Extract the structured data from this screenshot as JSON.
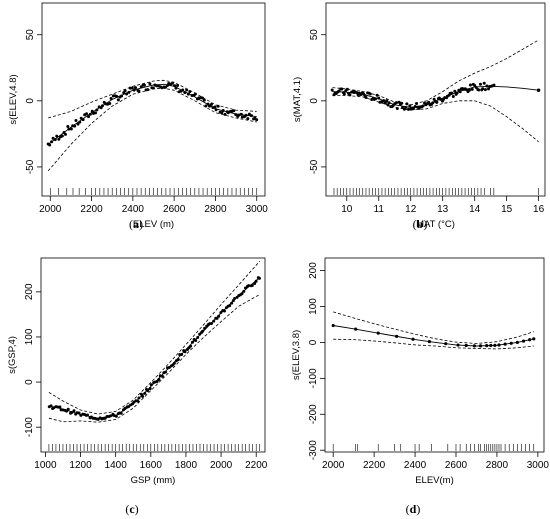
{
  "chart_data": [
    {
      "type": "line",
      "panel": "(a)",
      "xlabel": "ELEV (m)",
      "ylabel": "s(ELEV,4.8)",
      "xlim": [
        1960,
        3040
      ],
      "ylim": [
        -72,
        74
      ],
      "x_ticks": [
        2000,
        2200,
        2400,
        2600,
        2800,
        3000
      ],
      "y_ticks": [
        -50,
        0,
        50
      ],
      "x_tick_labels": [
        "2000",
        "2200",
        "2400",
        "2600",
        "2800",
        "3000"
      ],
      "y_tick_labels": [
        "-50",
        "0",
        "50"
      ],
      "fit": {
        "x": [
          1990,
          2100,
          2200,
          2300,
          2400,
          2500,
          2550,
          2600,
          2700,
          2800,
          2900,
          3000
        ],
        "y": [
          -33,
          -20,
          -9,
          1,
          8,
          12,
          12.5,
          11,
          3,
          -6,
          -10,
          -12
        ]
      },
      "upper": {
        "x": [
          1990,
          2100,
          2200,
          2300,
          2400,
          2500,
          2550,
          2600,
          2700,
          2800,
          2900,
          3000
        ],
        "y": [
          -13,
          -8,
          -1,
          5,
          11,
          15,
          15.5,
          14,
          6,
          -3,
          -7,
          -8
        ]
      },
      "lower": {
        "x": [
          1990,
          2100,
          2200,
          2300,
          2400,
          2500,
          2550,
          2600,
          2700,
          2800,
          2900,
          3000
        ],
        "y": [
          -53,
          -33,
          -17,
          -4,
          5,
          9,
          9.5,
          8,
          0,
          -9,
          -13,
          -16
        ]
      },
      "points_x_range": [
        1990,
        3000
      ],
      "point_spread": 2.5,
      "rug_x": [
        2000,
        2040,
        2080,
        2110,
        2140,
        2170,
        2200,
        2220,
        2240,
        2260,
        2280,
        2300,
        2320,
        2340,
        2360,
        2380,
        2400,
        2420,
        2440,
        2460,
        2480,
        2500,
        2520,
        2540,
        2560,
        2580,
        2600,
        2620,
        2640,
        2660,
        2680,
        2700,
        2720,
        2740,
        2760,
        2780,
        2800,
        2820,
        2840,
        2860,
        2880,
        2900,
        2920,
        2940,
        2960,
        2980,
        3000
      ]
    },
    {
      "type": "line",
      "panel": "(b)",
      "xlabel": "MAT (°C)",
      "ylabel": "s(MAT,4.1)",
      "xlim": [
        9.35,
        16.2
      ],
      "ylim": [
        -72,
        74
      ],
      "x_ticks": [
        10,
        11,
        12,
        13,
        14,
        15,
        16
      ],
      "y_ticks": [
        -50,
        0,
        50
      ],
      "x_tick_labels": [
        "10",
        "11",
        "12",
        "13",
        "14",
        "15",
        "16"
      ],
      "y_tick_labels": [
        "-50",
        "0",
        "50"
      ],
      "fit": {
        "x": [
          9.55,
          10,
          10.5,
          11,
          11.5,
          12,
          12.5,
          13,
          13.5,
          14,
          14.5,
          15,
          15.5,
          16
        ],
        "y": [
          7,
          6.5,
          5,
          1.5,
          -3,
          -5,
          -3,
          2,
          7,
          10.5,
          11,
          10.5,
          9.5,
          8
        ]
      },
      "upper": {
        "x": [
          9.55,
          10,
          10.5,
          11,
          11.5,
          12,
          12.5,
          13,
          13.5,
          14,
          14.5,
          15,
          15.5,
          16
        ],
        "y": [
          10,
          9,
          7,
          4,
          -1,
          -3,
          0,
          7,
          15,
          21,
          26,
          32,
          39,
          46
        ]
      },
      "lower": {
        "x": [
          9.55,
          10,
          10.5,
          11,
          11.5,
          12,
          12.5,
          13,
          13.5,
          14,
          14.5,
          15,
          15.5,
          16
        ],
        "y": [
          4,
          4,
          3,
          -1,
          -5,
          -7,
          -6,
          -2,
          0,
          0,
          -4,
          -12,
          -21,
          -31
        ]
      },
      "points_x_range": [
        9.55,
        14.6
      ],
      "point_spread": 2.5,
      "end_point": [
        16,
        8
      ],
      "rug_x": [
        9.6,
        9.7,
        9.8,
        9.9,
        10.0,
        10.1,
        10.2,
        10.3,
        10.4,
        10.5,
        10.6,
        10.7,
        10.8,
        10.9,
        11.0,
        11.1,
        11.2,
        11.3,
        11.4,
        11.5,
        11.6,
        11.7,
        11.8,
        11.9,
        12.0,
        12.1,
        12.2,
        12.3,
        12.4,
        12.5,
        12.6,
        12.7,
        12.8,
        12.9,
        13.0,
        13.1,
        13.2,
        13.3,
        13.4,
        13.5,
        13.6,
        13.7,
        13.8,
        13.9,
        14.0,
        14.1,
        14.2,
        14.3,
        14.5,
        14.6,
        16.0
      ]
    },
    {
      "type": "line",
      "panel": "(c)",
      "xlabel": "GSP (mm)",
      "ylabel": "s(GSP,4)",
      "xlim": [
        975,
        2250
      ],
      "ylim": [
        -155,
        275
      ],
      "x_ticks": [
        1000,
        1200,
        1400,
        1600,
        1800,
        2000,
        2200
      ],
      "y_ticks": [
        -100,
        0,
        100,
        200
      ],
      "x_tick_labels": [
        "1000",
        "1200",
        "1400",
        "1600",
        "1800",
        "2000",
        "2200"
      ],
      "y_tick_labels": [
        "-100",
        "0",
        "100",
        "200"
      ],
      "fit": {
        "x": [
          1020,
          1100,
          1200,
          1300,
          1400,
          1500,
          1600,
          1700,
          1800,
          1900,
          2000,
          2100,
          2220
        ],
        "y": [
          -53,
          -60,
          -72,
          -80,
          -74,
          -49,
          -10,
          30,
          72,
          113,
          153,
          192,
          232
        ]
      },
      "upper": {
        "x": [
          1020,
          1100,
          1200,
          1300,
          1400,
          1500,
          1600,
          1700,
          1800,
          1900,
          2000,
          2100,
          2220
        ],
        "y": [
          -23,
          -42,
          -62,
          -71,
          -65,
          -40,
          -1,
          40,
          83,
          127,
          172,
          215,
          268
        ]
      },
      "lower": {
        "x": [
          1020,
          1100,
          1200,
          1300,
          1400,
          1500,
          1600,
          1700,
          1800,
          1900,
          2000,
          2100,
          2220
        ],
        "y": [
          -80,
          -88,
          -86,
          -89,
          -83,
          -58,
          -19,
          20,
          61,
          99,
          134,
          168,
          194
        ]
      },
      "points_x_range": [
        1020,
        2220
      ],
      "point_spread": 4,
      "rug_x": [
        1020,
        1040,
        1060,
        1080,
        1100,
        1120,
        1140,
        1160,
        1180,
        1200,
        1220,
        1240,
        1260,
        1280,
        1300,
        1320,
        1340,
        1360,
        1380,
        1400,
        1420,
        1440,
        1460,
        1480,
        1500,
        1520,
        1540,
        1560,
        1580,
        1600,
        1620,
        1640,
        1660,
        1680,
        1700,
        1720,
        1740,
        1760,
        1780,
        1800,
        1820,
        1840,
        1860,
        1880,
        1900,
        1920,
        1940,
        1960,
        1980,
        2000,
        2020,
        2040,
        2060,
        2080,
        2100,
        2120,
        2140,
        2160,
        2180,
        2200,
        2220
      ]
    },
    {
      "type": "line",
      "panel": "(d)",
      "xlabel": "ELEV(m)",
      "ylabel": "s(ELEV,3.8)",
      "xlim": [
        1960,
        3030
      ],
      "ylim": [
        -305,
        235
      ],
      "x_ticks": [
        2000,
        2200,
        2400,
        2600,
        2800,
        3000
      ],
      "y_ticks": [
        -300,
        -200,
        -100,
        0,
        100,
        200
      ],
      "x_tick_labels": [
        "2000",
        "2200",
        "2400",
        "2600",
        "2800",
        "3000"
      ],
      "y_tick_labels": [
        "-300",
        "-200",
        "-100",
        "0",
        "100",
        "200"
      ],
      "fit": {
        "x": [
          2000,
          2100,
          2200,
          2300,
          2400,
          2500,
          2600,
          2700,
          2800,
          2900,
          2980
        ],
        "y": [
          47,
          38,
          28,
          18,
          8,
          0,
          -7,
          -10,
          -8,
          0,
          10
        ]
      },
      "upper": {
        "x": [
          2000,
          2100,
          2200,
          2300,
          2400,
          2500,
          2600,
          2700,
          2800,
          2900,
          2980
        ],
        "y": [
          85,
          68,
          52,
          37,
          23,
          10,
          1,
          -3,
          2,
          15,
          30
        ]
      },
      "lower": {
        "x": [
          2000,
          2100,
          2200,
          2300,
          2400,
          2500,
          2600,
          2700,
          2800,
          2900,
          2980
        ],
        "y": [
          9,
          8,
          4,
          -1,
          -7,
          -10,
          -15,
          -17,
          -18,
          -15,
          -10
        ]
      },
      "points_x": [
        2000,
        2110,
        2220,
        2310,
        2390,
        2470,
        2550,
        2610,
        2650,
        2690,
        2720,
        2750,
        2770,
        2790,
        2810,
        2840,
        2870,
        2900,
        2930,
        2960,
        2980
      ],
      "point_spread": 0,
      "rug_x": [
        2000,
        2110,
        2120,
        2220,
        2300,
        2330,
        2400,
        2420,
        2480,
        2560,
        2600,
        2620,
        2650,
        2670,
        2690,
        2710,
        2720,
        2740,
        2750,
        2760,
        2770,
        2780,
        2790,
        2800,
        2810,
        2820,
        2840,
        2860,
        2880,
        2900,
        2920,
        2940,
        2960,
        2980
      ]
    }
  ]
}
